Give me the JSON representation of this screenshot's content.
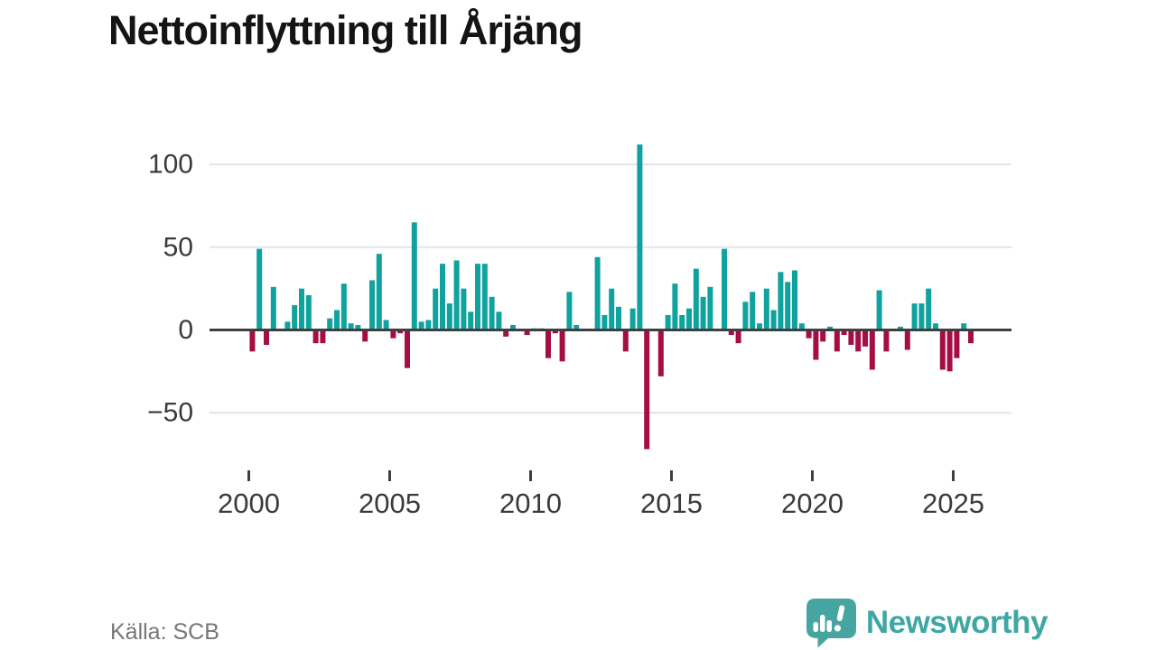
{
  "header": {
    "title": "Nettoinflyttning till Årjäng"
  },
  "footer": {
    "source": "Källa: SCB",
    "brand": "Newsworthy"
  },
  "colors": {
    "positive": "#10a29e",
    "negative": "#a50e45",
    "grid": "#e3e3e3",
    "zero_line": "#3f3f3f",
    "axis_text": "#3a3a3a",
    "title_text": "#141414",
    "source_text": "#767676",
    "brand_teal": "#46a5a1"
  },
  "chart_data": {
    "type": "bar",
    "title": "Nettoinflyttning till Årjäng",
    "xlabel": "",
    "ylabel": "",
    "frequency": "quarterly",
    "start": {
      "year": 2000,
      "quarter": 1
    },
    "x_tick_years": [
      2000,
      2005,
      2010,
      2015,
      2020,
      2025
    ],
    "x_tick_labels": [
      "2000",
      "2005",
      "2010",
      "2015",
      "2020",
      "2025"
    ],
    "y_ticks": [
      100,
      50,
      0,
      -50
    ],
    "y_tick_labels": [
      "100",
      "50",
      "0",
      "−50"
    ],
    "ylim": [
      -80,
      118
    ],
    "grid": true,
    "legend": false,
    "series": [
      {
        "name": "Nettoinflyttning",
        "values": [
          -13,
          49,
          -9,
          26,
          0,
          5,
          15,
          25,
          21,
          -8,
          -8,
          7,
          12,
          28,
          4,
          3,
          -7,
          30,
          46,
          6,
          -5,
          -2,
          -23,
          65,
          5,
          6,
          25,
          40,
          16,
          42,
          25,
          11,
          40,
          40,
          20,
          11,
          -4,
          3,
          0,
          -3,
          1,
          1,
          -17,
          -2,
          -19,
          23,
          3,
          0,
          0,
          44,
          9,
          25,
          14,
          -13,
          13,
          112,
          -72,
          0,
          -28,
          9,
          28,
          9,
          13,
          37,
          20,
          26,
          0,
          49,
          -3,
          -8,
          17,
          23,
          4,
          25,
          12,
          35,
          29,
          36,
          4,
          -5,
          -18,
          -7,
          2,
          -13,
          -3,
          -9,
          -13,
          -10,
          -24,
          24,
          -13,
          0,
          2,
          -12,
          16,
          16,
          25,
          4,
          -24,
          -25,
          -17,
          4,
          -8
        ]
      }
    ]
  }
}
